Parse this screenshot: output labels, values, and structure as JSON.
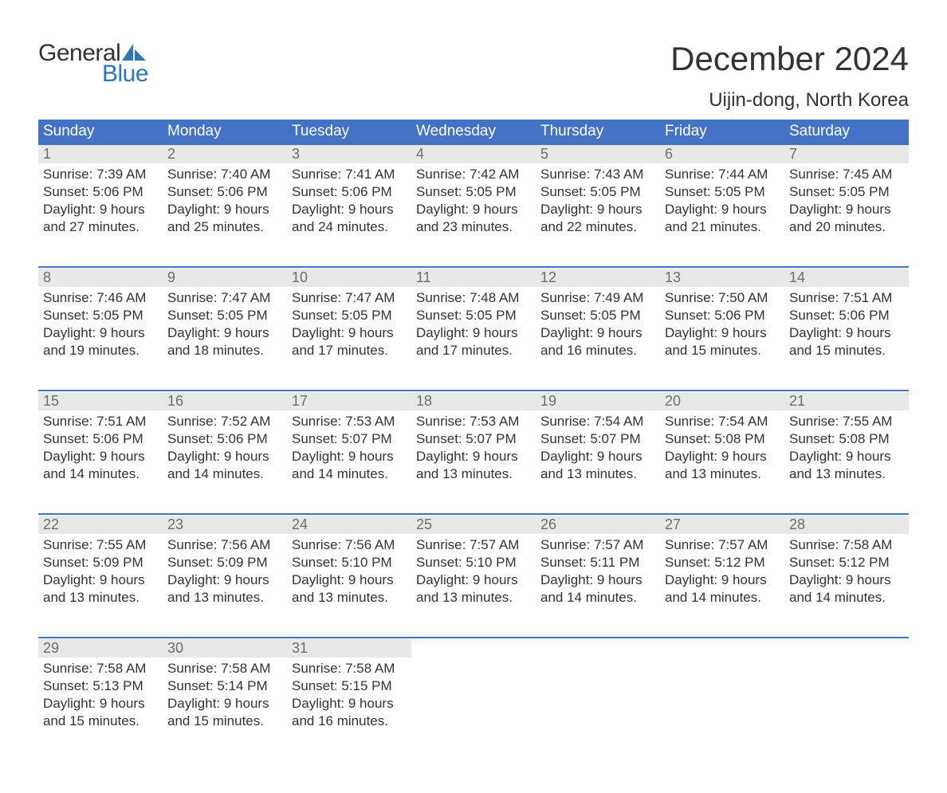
{
  "logo": {
    "line1": "General",
    "line2": "Blue"
  },
  "title": "December 2024",
  "subtitle": "Uijin-dong, North Korea",
  "colors": {
    "header_bg": "#4472c4",
    "header_text": "#ffffff",
    "daynum_bg": "#e8e8e8",
    "daynum_text": "#6e6e6e",
    "body_text": "#333333",
    "accent": "#2e75b6",
    "page_bg": "#ffffff"
  },
  "weekdays": [
    "Sunday",
    "Monday",
    "Tuesday",
    "Wednesday",
    "Thursday",
    "Friday",
    "Saturday"
  ],
  "weeks": [
    [
      {
        "day": "1",
        "sunrise": "7:39 AM",
        "sunset": "5:06 PM",
        "dl1": "Daylight: 9 hours",
        "dl2": "and 27 minutes."
      },
      {
        "day": "2",
        "sunrise": "7:40 AM",
        "sunset": "5:06 PM",
        "dl1": "Daylight: 9 hours",
        "dl2": "and 25 minutes."
      },
      {
        "day": "3",
        "sunrise": "7:41 AM",
        "sunset": "5:06 PM",
        "dl1": "Daylight: 9 hours",
        "dl2": "and 24 minutes."
      },
      {
        "day": "4",
        "sunrise": "7:42 AM",
        "sunset": "5:05 PM",
        "dl1": "Daylight: 9 hours",
        "dl2": "and 23 minutes."
      },
      {
        "day": "5",
        "sunrise": "7:43 AM",
        "sunset": "5:05 PM",
        "dl1": "Daylight: 9 hours",
        "dl2": "and 22 minutes."
      },
      {
        "day": "6",
        "sunrise": "7:44 AM",
        "sunset": "5:05 PM",
        "dl1": "Daylight: 9 hours",
        "dl2": "and 21 minutes."
      },
      {
        "day": "7",
        "sunrise": "7:45 AM",
        "sunset": "5:05 PM",
        "dl1": "Daylight: 9 hours",
        "dl2": "and 20 minutes."
      }
    ],
    [
      {
        "day": "8",
        "sunrise": "7:46 AM",
        "sunset": "5:05 PM",
        "dl1": "Daylight: 9 hours",
        "dl2": "and 19 minutes."
      },
      {
        "day": "9",
        "sunrise": "7:47 AM",
        "sunset": "5:05 PM",
        "dl1": "Daylight: 9 hours",
        "dl2": "and 18 minutes."
      },
      {
        "day": "10",
        "sunrise": "7:47 AM",
        "sunset": "5:05 PM",
        "dl1": "Daylight: 9 hours",
        "dl2": "and 17 minutes."
      },
      {
        "day": "11",
        "sunrise": "7:48 AM",
        "sunset": "5:05 PM",
        "dl1": "Daylight: 9 hours",
        "dl2": "and 17 minutes."
      },
      {
        "day": "12",
        "sunrise": "7:49 AM",
        "sunset": "5:05 PM",
        "dl1": "Daylight: 9 hours",
        "dl2": "and 16 minutes."
      },
      {
        "day": "13",
        "sunrise": "7:50 AM",
        "sunset": "5:06 PM",
        "dl1": "Daylight: 9 hours",
        "dl2": "and 15 minutes."
      },
      {
        "day": "14",
        "sunrise": "7:51 AM",
        "sunset": "5:06 PM",
        "dl1": "Daylight: 9 hours",
        "dl2": "and 15 minutes."
      }
    ],
    [
      {
        "day": "15",
        "sunrise": "7:51 AM",
        "sunset": "5:06 PM",
        "dl1": "Daylight: 9 hours",
        "dl2": "and 14 minutes."
      },
      {
        "day": "16",
        "sunrise": "7:52 AM",
        "sunset": "5:06 PM",
        "dl1": "Daylight: 9 hours",
        "dl2": "and 14 minutes."
      },
      {
        "day": "17",
        "sunrise": "7:53 AM",
        "sunset": "5:07 PM",
        "dl1": "Daylight: 9 hours",
        "dl2": "and 14 minutes."
      },
      {
        "day": "18",
        "sunrise": "7:53 AM",
        "sunset": "5:07 PM",
        "dl1": "Daylight: 9 hours",
        "dl2": "and 13 minutes."
      },
      {
        "day": "19",
        "sunrise": "7:54 AM",
        "sunset": "5:07 PM",
        "dl1": "Daylight: 9 hours",
        "dl2": "and 13 minutes."
      },
      {
        "day": "20",
        "sunrise": "7:54 AM",
        "sunset": "5:08 PM",
        "dl1": "Daylight: 9 hours",
        "dl2": "and 13 minutes."
      },
      {
        "day": "21",
        "sunrise": "7:55 AM",
        "sunset": "5:08 PM",
        "dl1": "Daylight: 9 hours",
        "dl2": "and 13 minutes."
      }
    ],
    [
      {
        "day": "22",
        "sunrise": "7:55 AM",
        "sunset": "5:09 PM",
        "dl1": "Daylight: 9 hours",
        "dl2": "and 13 minutes."
      },
      {
        "day": "23",
        "sunrise": "7:56 AM",
        "sunset": "5:09 PM",
        "dl1": "Daylight: 9 hours",
        "dl2": "and 13 minutes."
      },
      {
        "day": "24",
        "sunrise": "7:56 AM",
        "sunset": "5:10 PM",
        "dl1": "Daylight: 9 hours",
        "dl2": "and 13 minutes."
      },
      {
        "day": "25",
        "sunrise": "7:57 AM",
        "sunset": "5:10 PM",
        "dl1": "Daylight: 9 hours",
        "dl2": "and 13 minutes."
      },
      {
        "day": "26",
        "sunrise": "7:57 AM",
        "sunset": "5:11 PM",
        "dl1": "Daylight: 9 hours",
        "dl2": "and 14 minutes."
      },
      {
        "day": "27",
        "sunrise": "7:57 AM",
        "sunset": "5:12 PM",
        "dl1": "Daylight: 9 hours",
        "dl2": "and 14 minutes."
      },
      {
        "day": "28",
        "sunrise": "7:58 AM",
        "sunset": "5:12 PM",
        "dl1": "Daylight: 9 hours",
        "dl2": "and 14 minutes."
      }
    ],
    [
      {
        "day": "29",
        "sunrise": "7:58 AM",
        "sunset": "5:13 PM",
        "dl1": "Daylight: 9 hours",
        "dl2": "and 15 minutes."
      },
      {
        "day": "30",
        "sunrise": "7:58 AM",
        "sunset": "5:14 PM",
        "dl1": "Daylight: 9 hours",
        "dl2": "and 15 minutes."
      },
      {
        "day": "31",
        "sunrise": "7:58 AM",
        "sunset": "5:15 PM",
        "dl1": "Daylight: 9 hours",
        "dl2": "and 16 minutes."
      },
      null,
      null,
      null,
      null
    ]
  ]
}
